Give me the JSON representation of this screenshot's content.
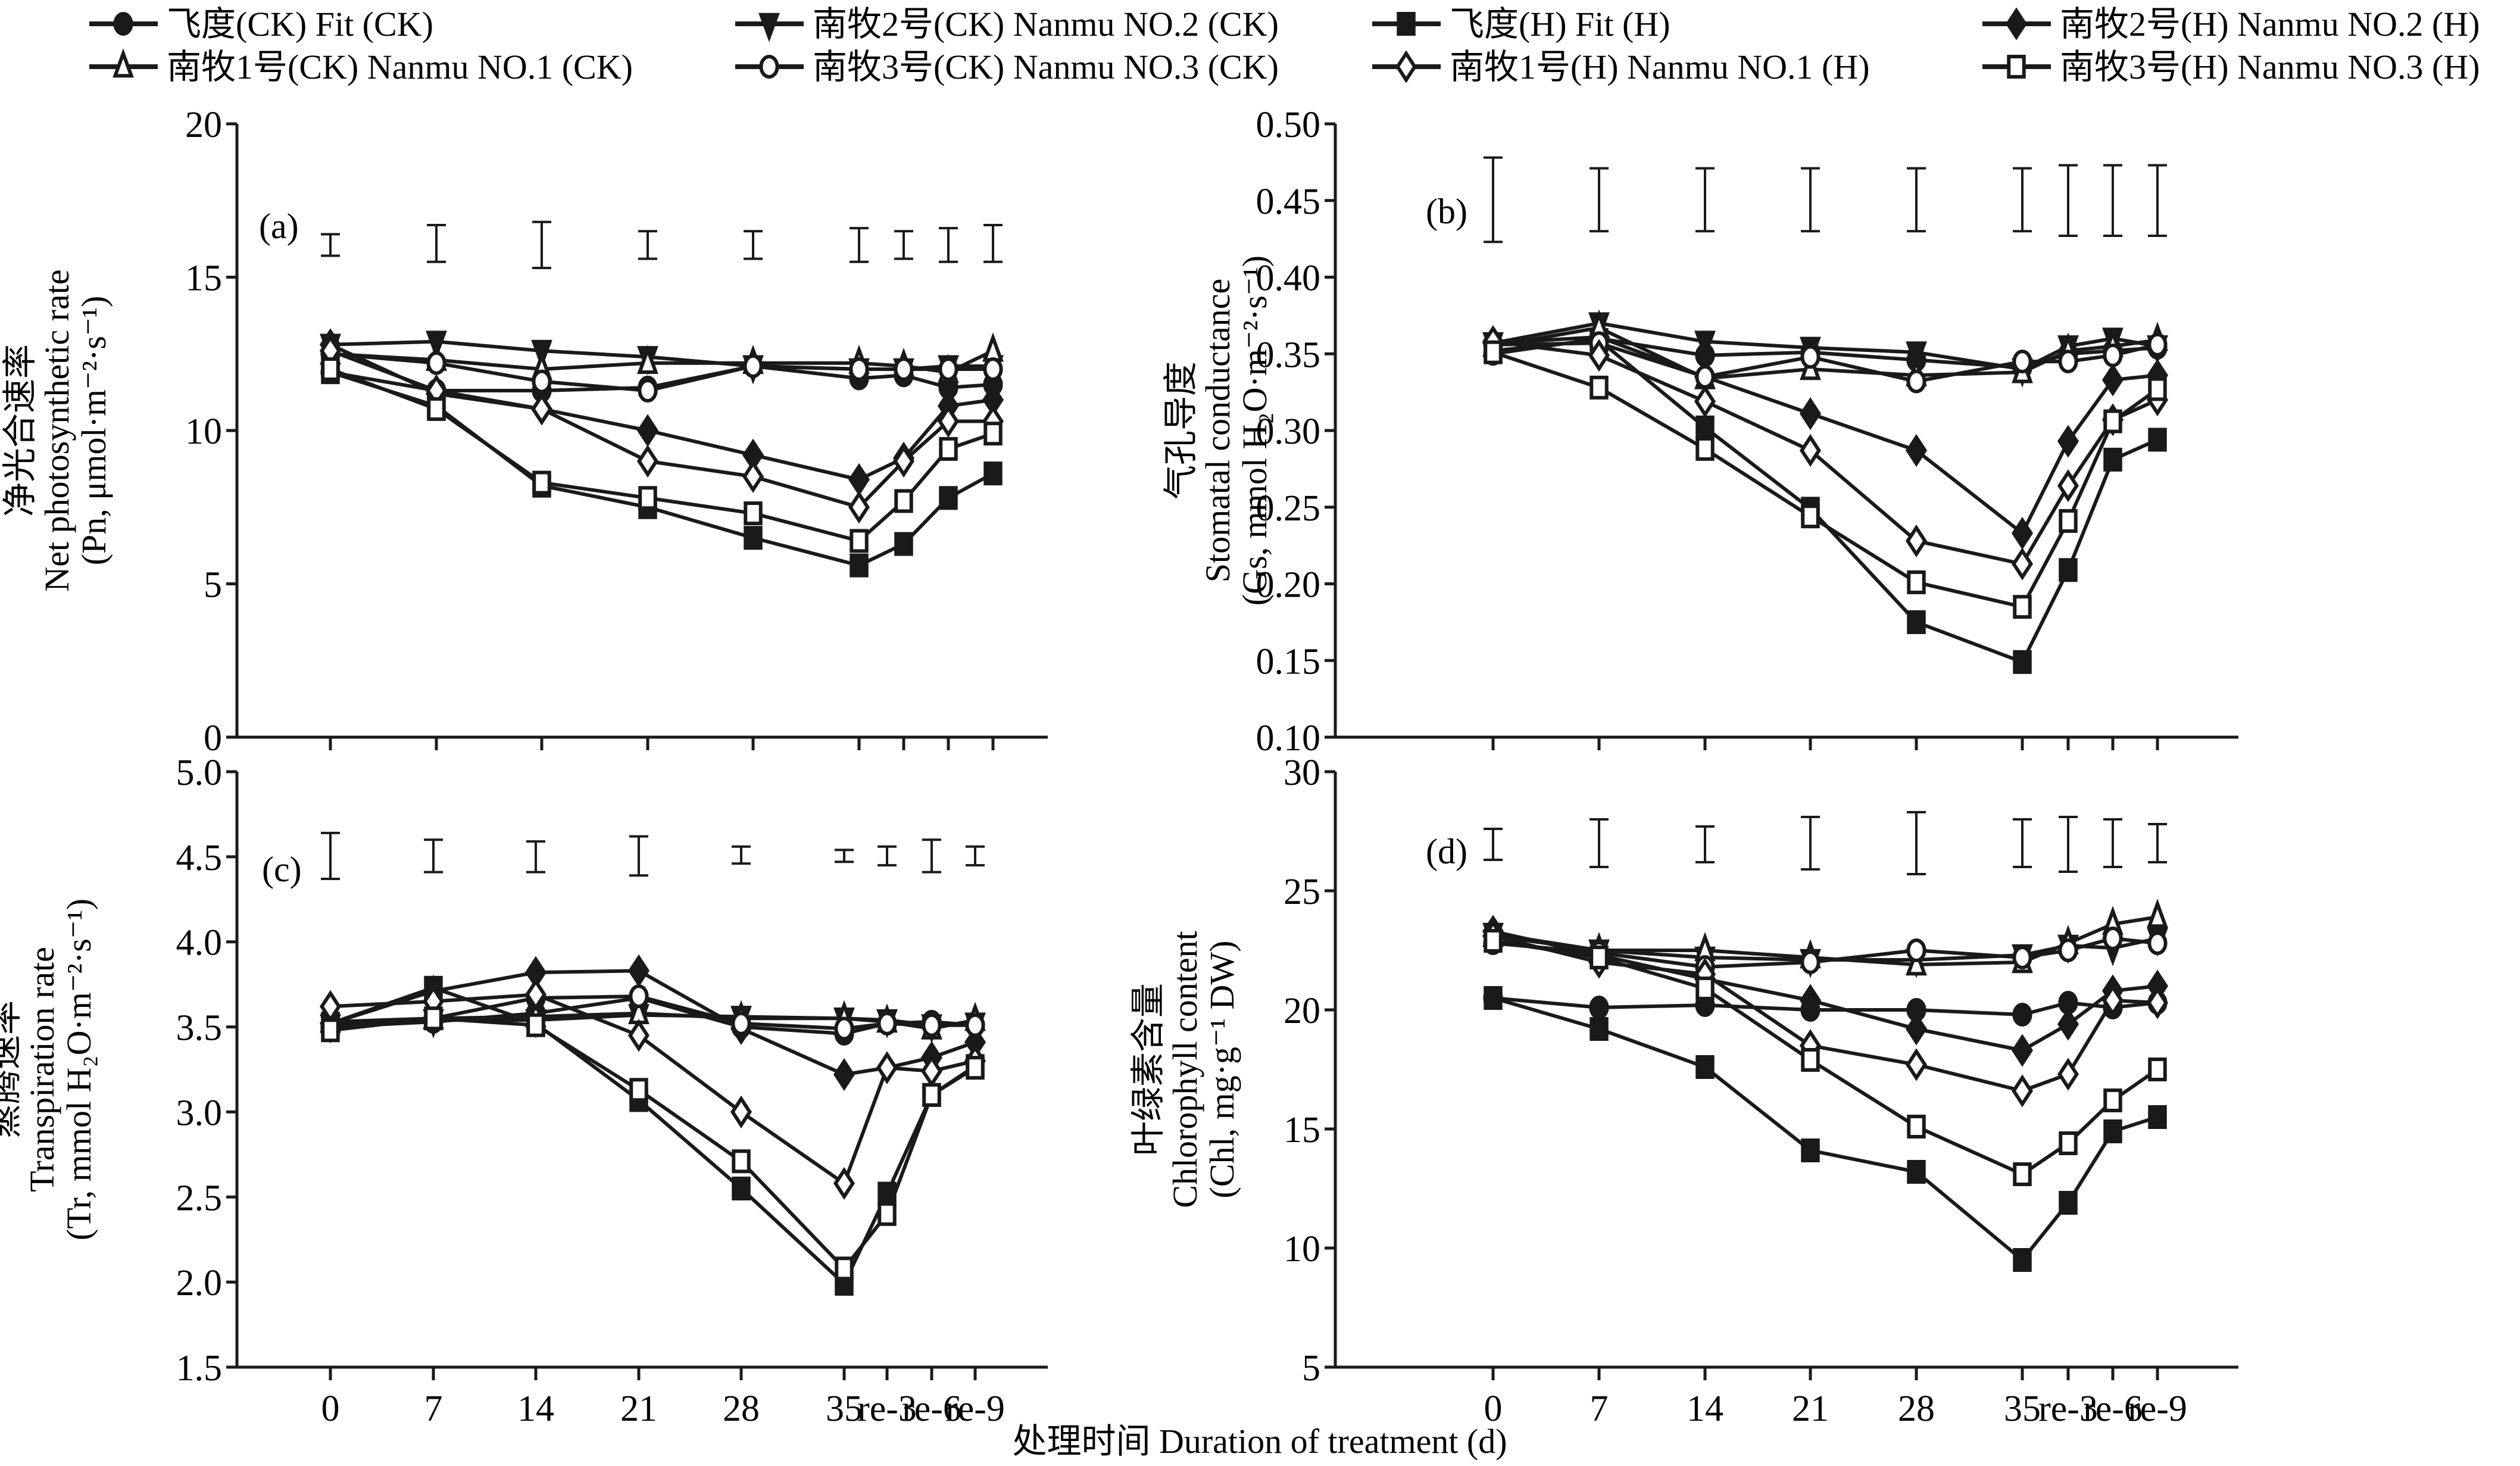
{
  "legend": [
    {
      "id": "fit_ck",
      "label": "飞度(CK) Fit (CK)",
      "marker": "circle",
      "filled": true
    },
    {
      "id": "n2_ck",
      "label": "南牧2号(CK) Nanmu NO.2 (CK)",
      "marker": "triangle-down",
      "filled": true
    },
    {
      "id": "fit_h",
      "label": "飞度(H) Fit (H)",
      "marker": "square",
      "filled": true
    },
    {
      "id": "n2_h",
      "label": "南牧2号(H) Nanmu NO.2 (H)",
      "marker": "diamond",
      "filled": true
    },
    {
      "id": "n1_ck",
      "label": "南牧1号(CK) Nanmu NO.1 (CK)",
      "marker": "triangle-up",
      "filled": false
    },
    {
      "id": "n3_ck",
      "label": "南牧3号(CK) Nanmu NO.3 (CK)",
      "marker": "circle",
      "filled": false
    },
    {
      "id": "n1_h",
      "label": "南牧1号(H) Nanmu NO.1 (H)",
      "marker": "diamond",
      "filled": false
    },
    {
      "id": "n3_h",
      "label": "南牧3号(H) Nanmu NO.3 (H)",
      "marker": "square",
      "filled": false
    }
  ],
  "xlabel": "处理时间 Duration of treatment (d)",
  "chart_data": [
    {
      "type": "line",
      "panel": "(a)",
      "ylabel_cn": "净光合速率",
      "ylabel_en": "Net photosynthetic rate",
      "ylabel_unit": "(Pn, μmol·m⁻²·s⁻¹)",
      "x": [
        "0",
        "7",
        "14",
        "21",
        "28",
        "35",
        "re-3",
        "re-6",
        "re-9"
      ],
      "xticks_shown": false,
      "ylim": [
        0,
        20
      ],
      "yticks": [
        "0",
        "5",
        "10",
        "15",
        "20"
      ],
      "error_bars": [
        [
          15.7,
          16.4
        ],
        [
          15.5,
          16.7
        ],
        [
          15.3,
          16.8
        ],
        [
          15.6,
          16.5
        ],
        [
          15.6,
          16.5
        ],
        [
          15.5,
          16.6
        ],
        [
          15.6,
          16.5
        ],
        [
          15.5,
          16.6
        ],
        [
          15.5,
          16.7
        ]
      ],
      "series": [
        {
          "id": "fit_ck",
          "values": [
            11.9,
            11.3,
            11.3,
            11.4,
            12.1,
            11.7,
            11.8,
            11.4,
            11.5
          ]
        },
        {
          "id": "n2_ck",
          "values": [
            12.8,
            12.9,
            12.6,
            12.4,
            12.1,
            12.0,
            12.0,
            12.1,
            12.1
          ]
        },
        {
          "id": "fit_h",
          "values": [
            11.9,
            10.8,
            8.2,
            7.5,
            6.5,
            5.6,
            6.3,
            7.8,
            8.6
          ]
        },
        {
          "id": "n2_h",
          "values": [
            12.8,
            11.2,
            10.7,
            10.0,
            9.2,
            8.4,
            9.1,
            10.8,
            11.0
          ]
        },
        {
          "id": "n1_ck",
          "values": [
            12.5,
            12.3,
            12.0,
            12.2,
            12.2,
            12.2,
            12.1,
            11.9,
            12.6
          ]
        },
        {
          "id": "n3_ck",
          "values": [
            12.5,
            12.2,
            11.6,
            11.3,
            12.1,
            12.0,
            12.0,
            12.0,
            12.0
          ]
        },
        {
          "id": "n1_h",
          "values": [
            12.6,
            11.3,
            10.7,
            9.0,
            8.5,
            7.5,
            9.0,
            10.3,
            10.3
          ]
        },
        {
          "id": "n3_h",
          "values": [
            12.0,
            10.7,
            8.3,
            7.8,
            7.3,
            6.4,
            7.7,
            9.4,
            9.9
          ]
        }
      ]
    },
    {
      "type": "line",
      "panel": "(b)",
      "ylabel_cn": "气孔导度",
      "ylabel_en": "Stomatal conductance",
      "ylabel_unit": "(Gs, mmol H₂O·m⁻²·s⁻¹)",
      "x": [
        "0",
        "7",
        "14",
        "21",
        "28",
        "35",
        "re-3",
        "re-6",
        "re-9"
      ],
      "xticks_shown": false,
      "ylim": [
        0.1,
        0.5
      ],
      "yticks": [
        "0.10",
        "0.15",
        "0.20",
        "0.25",
        "0.30",
        "0.35",
        "0.40",
        "0.45",
        "0.50"
      ],
      "error_bars": [
        [
          0.423,
          0.478
        ],
        [
          0.43,
          0.471
        ],
        [
          0.43,
          0.471
        ],
        [
          0.43,
          0.471
        ],
        [
          0.43,
          0.471
        ],
        [
          0.43,
          0.471
        ],
        [
          0.427,
          0.473
        ],
        [
          0.427,
          0.473
        ],
        [
          0.427,
          0.473
        ]
      ],
      "series": [
        {
          "id": "fit_ck",
          "values": [
            0.35,
            0.36,
            0.349,
            0.351,
            0.346,
            0.341,
            0.35,
            0.352,
            0.354
          ]
        },
        {
          "id": "n2_ck",
          "values": [
            0.357,
            0.37,
            0.358,
            0.354,
            0.351,
            0.34,
            0.355,
            0.36,
            0.355
          ]
        },
        {
          "id": "fit_h",
          "values": [
            0.352,
            0.359,
            0.302,
            0.249,
            0.175,
            0.149,
            0.209,
            0.281,
            0.294
          ]
        },
        {
          "id": "n2_h",
          "values": [
            0.357,
            0.361,
            0.335,
            0.311,
            0.287,
            0.233,
            0.293,
            0.333,
            0.336
          ]
        },
        {
          "id": "n1_ck",
          "values": [
            0.355,
            0.367,
            0.334,
            0.34,
            0.336,
            0.338,
            0.352,
            0.355,
            0.359
          ]
        },
        {
          "id": "n3_ck",
          "values": [
            0.356,
            0.357,
            0.335,
            0.348,
            0.332,
            0.345,
            0.345,
            0.349,
            0.356
          ]
        },
        {
          "id": "n1_h",
          "values": [
            0.358,
            0.349,
            0.319,
            0.287,
            0.228,
            0.213,
            0.264,
            0.307,
            0.32
          ]
        },
        {
          "id": "n3_h",
          "values": [
            0.351,
            0.328,
            0.288,
            0.244,
            0.201,
            0.185,
            0.241,
            0.306,
            0.327
          ]
        }
      ]
    },
    {
      "type": "line",
      "panel": "(c)",
      "ylabel_cn": "蒸腾速率",
      "ylabel_en": "Transpiration rate",
      "ylabel_unit": "(Tr, mmol H₂O·m⁻²·s⁻¹)",
      "x": [
        "0",
        "7",
        "14",
        "21",
        "28",
        "35",
        "re-3",
        "re-6",
        "re-9"
      ],
      "xticks_shown": true,
      "ylim": [
        1.5,
        5.0
      ],
      "yticks": [
        "1.5",
        "2.0",
        "2.5",
        "3.0",
        "3.5",
        "4.0",
        "4.5",
        "5.0"
      ],
      "error_bars": [
        [
          4.37,
          4.64
        ],
        [
          4.41,
          4.6
        ],
        [
          4.41,
          4.59
        ],
        [
          4.39,
          4.62
        ],
        [
          4.46,
          4.56
        ],
        [
          4.47,
          4.54
        ],
        [
          4.45,
          4.56
        ],
        [
          4.41,
          4.6
        ],
        [
          4.45,
          4.56
        ]
      ],
      "series": [
        {
          "id": "fit_ck",
          "values": [
            3.5,
            3.53,
            3.58,
            3.67,
            3.5,
            3.46,
            3.52,
            3.53,
            3.51
          ]
        },
        {
          "id": "n2_ck",
          "values": [
            3.51,
            3.54,
            3.54,
            3.57,
            3.56,
            3.55,
            3.54,
            3.51,
            3.52
          ]
        },
        {
          "id": "fit_h",
          "values": [
            3.52,
            3.73,
            3.52,
            3.07,
            2.55,
            1.99,
            2.52,
            3.1,
            3.27
          ]
        },
        {
          "id": "n2_h",
          "values": [
            3.52,
            3.71,
            3.82,
            3.83,
            3.49,
            3.22,
            3.26,
            3.32,
            3.41
          ]
        },
        {
          "id": "n1_ck",
          "values": [
            3.53,
            3.55,
            3.56,
            3.58,
            3.55,
            3.55,
            3.53,
            3.49,
            3.54
          ]
        },
        {
          "id": "n3_ck",
          "values": [
            3.48,
            3.55,
            3.67,
            3.68,
            3.52,
            3.49,
            3.52,
            3.51,
            3.51
          ]
        },
        {
          "id": "n1_h",
          "values": [
            3.62,
            3.65,
            3.69,
            3.45,
            3.0,
            2.58,
            3.26,
            3.24,
            3.3
          ]
        },
        {
          "id": "n3_h",
          "values": [
            3.48,
            3.55,
            3.51,
            3.13,
            2.71,
            2.08,
            2.4,
            3.1,
            3.26
          ]
        }
      ]
    },
    {
      "type": "line",
      "panel": "(d)",
      "ylabel_cn": "叶绿素含量",
      "ylabel_en": "Chlorophyll content",
      "ylabel_unit": "(Chl, mg·g⁻¹ DW)",
      "x": [
        "0",
        "7",
        "14",
        "21",
        "28",
        "35",
        "re-3",
        "re-6",
        "re-9"
      ],
      "xticks_shown": true,
      "ylim": [
        5,
        30
      ],
      "yticks": [
        "5",
        "10",
        "15",
        "20",
        "25",
        "30"
      ],
      "error_bars": [
        [
          26.3,
          27.6
        ],
        [
          26.0,
          28.0
        ],
        [
          26.2,
          27.7
        ],
        [
          25.9,
          28.1
        ],
        [
          25.7,
          28.3
        ],
        [
          26.0,
          28.0
        ],
        [
          25.8,
          28.1
        ],
        [
          26.0,
          28.0
        ],
        [
          26.2,
          27.8
        ]
      ],
      "series": [
        {
          "id": "fit_ck",
          "values": [
            20.5,
            20.1,
            20.2,
            20.0,
            20.0,
            19.8,
            20.3,
            20.1,
            20.3
          ]
        },
        {
          "id": "n2_ck",
          "values": [
            23.2,
            22.5,
            22.2,
            22.1,
            22.1,
            22.3,
            22.7,
            22.6,
            23.0
          ]
        },
        {
          "id": "fit_h",
          "values": [
            20.5,
            19.2,
            17.6,
            14.1,
            13.2,
            9.5,
            11.9,
            14.9,
            15.5
          ]
        },
        {
          "id": "n2_h",
          "values": [
            23.3,
            22.3,
            21.3,
            20.4,
            19.2,
            18.3,
            19.4,
            20.8,
            21.0
          ]
        },
        {
          "id": "n1_ck",
          "values": [
            23.1,
            22.5,
            22.5,
            22.2,
            21.9,
            22.0,
            22.8,
            23.6,
            23.9
          ]
        },
        {
          "id": "n3_ck",
          "values": [
            22.8,
            22.4,
            21.8,
            22.0,
            22.5,
            22.2,
            22.5,
            23.0,
            22.8
          ]
        },
        {
          "id": "n1_h",
          "values": [
            23.1,
            22.0,
            21.5,
            18.5,
            17.7,
            16.6,
            17.3,
            20.4,
            20.3
          ]
        },
        {
          "id": "n3_h",
          "values": [
            22.9,
            22.2,
            20.9,
            17.9,
            15.1,
            13.1,
            14.4,
            16.2,
            17.5
          ]
        }
      ]
    }
  ]
}
